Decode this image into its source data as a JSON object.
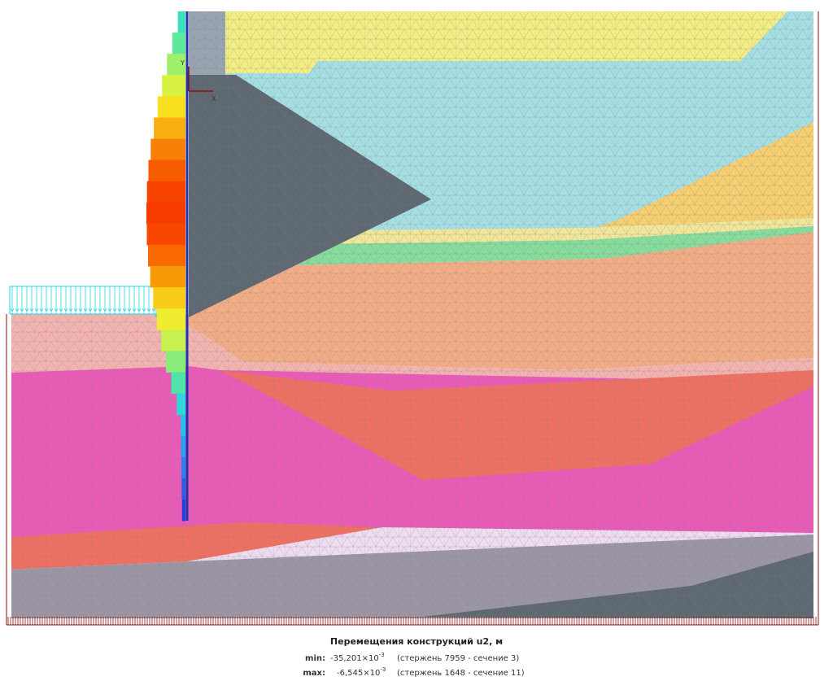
{
  "axes": {
    "y": "Y",
    "x": "X"
  },
  "legend": {
    "title": "Перемещения конструкций u2, м",
    "rows": [
      {
        "label": "min:",
        "value": "-35,201×10",
        "exponent": "-3",
        "note": "(стержень 7959 - сечение 3)"
      },
      {
        "label": "max:",
        "value": "-6,545×10",
        "exponent": "-3",
        "note": "(стержень 1648 - сечение 11)"
      }
    ]
  }
}
